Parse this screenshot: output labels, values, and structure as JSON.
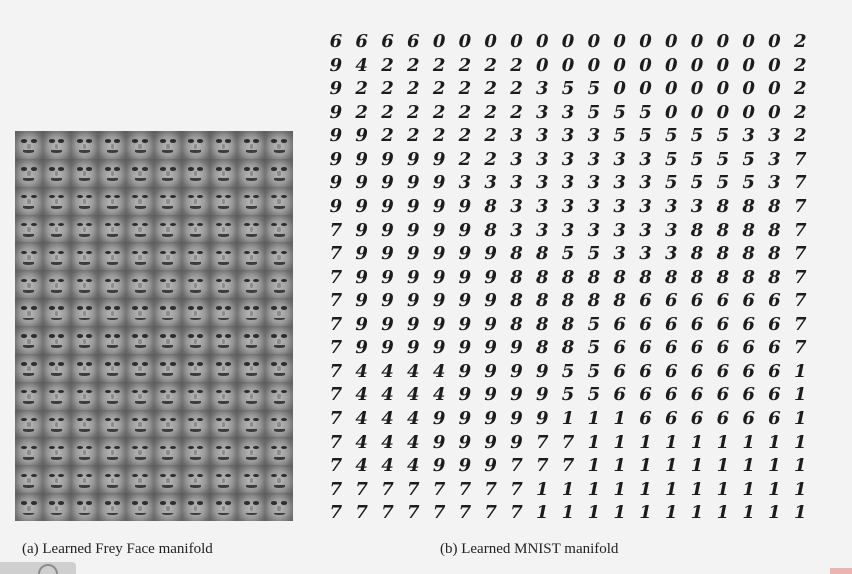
{
  "captions": {
    "frey": "(a) Learned Frey Face manifold",
    "mnist": "(b) Learned MNIST manifold"
  },
  "frey_grid": {
    "columns": 10,
    "rows": 14
  },
  "mnist_grid": [
    "6666000000000000002",
    "9422222200000000002",
    "9222222235500000002",
    "9222222233555000002",
    "9922222333355555332",
    "9999922333333555537",
    "9999933333333555537",
    "9999998333333338887",
    "7999998333333388887",
    "7999999885533388887",
    "7999999888888888887",
    "7999999888886666667",
    "7999999888566666667",
    "7999999988566666667",
    "7444499995566666661",
    "7444499995566666661",
    "7444999991116666661",
    "7444999977111111111",
    "7444999777111111111",
    "7777777711111111111",
    "7777777711111111111"
  ]
}
